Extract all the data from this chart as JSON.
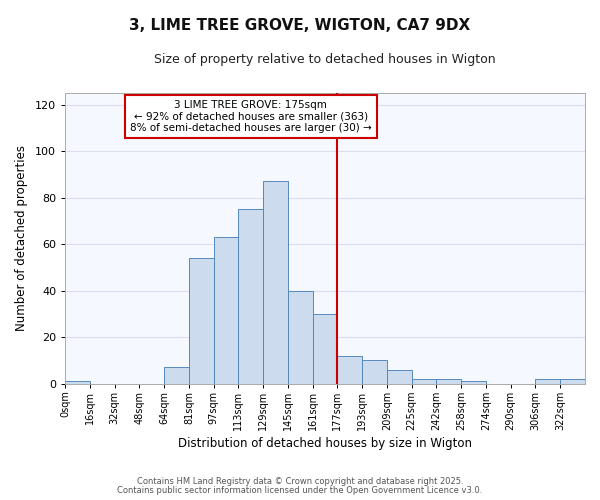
{
  "title": "3, LIME TREE GROVE, WIGTON, CA7 9DX",
  "subtitle": "Size of property relative to detached houses in Wigton",
  "xlabel": "Distribution of detached houses by size in Wigton",
  "ylabel": "Number of detached properties",
  "bin_labels": [
    "0sqm",
    "16sqm",
    "32sqm",
    "48sqm",
    "64sqm",
    "81sqm",
    "97sqm",
    "113sqm",
    "129sqm",
    "145sqm",
    "161sqm",
    "177sqm",
    "193sqm",
    "209sqm",
    "225sqm",
    "242sqm",
    "258sqm",
    "274sqm",
    "290sqm",
    "306sqm",
    "322sqm"
  ],
  "bar_heights": [
    1,
    0,
    0,
    0,
    7,
    54,
    63,
    75,
    87,
    40,
    30,
    12,
    10,
    6,
    2,
    2,
    1,
    0,
    0,
    2,
    2
  ],
  "bar_color": "#ccdcee",
  "bar_edge_color": "#5588bb",
  "vline_x": 11,
  "vline_color": "#cc0000",
  "annotation_text": "3 LIME TREE GROVE: 175sqm\n← 92% of detached houses are smaller (363)\n8% of semi-detached houses are larger (30) →",
  "annotation_box_facecolor": "#ffffff",
  "annotation_box_edgecolor": "#cc0000",
  "ylim": [
    0,
    125
  ],
  "yticks": [
    0,
    20,
    40,
    60,
    80,
    100,
    120
  ],
  "plot_bg_color": "#f5f8ff",
  "fig_bg_color": "#ffffff",
  "grid_color": "#ddddee",
  "footnote1": "Contains HM Land Registry data © Crown copyright and database right 2025.",
  "footnote2": "Contains public sector information licensed under the Open Government Licence v3.0."
}
